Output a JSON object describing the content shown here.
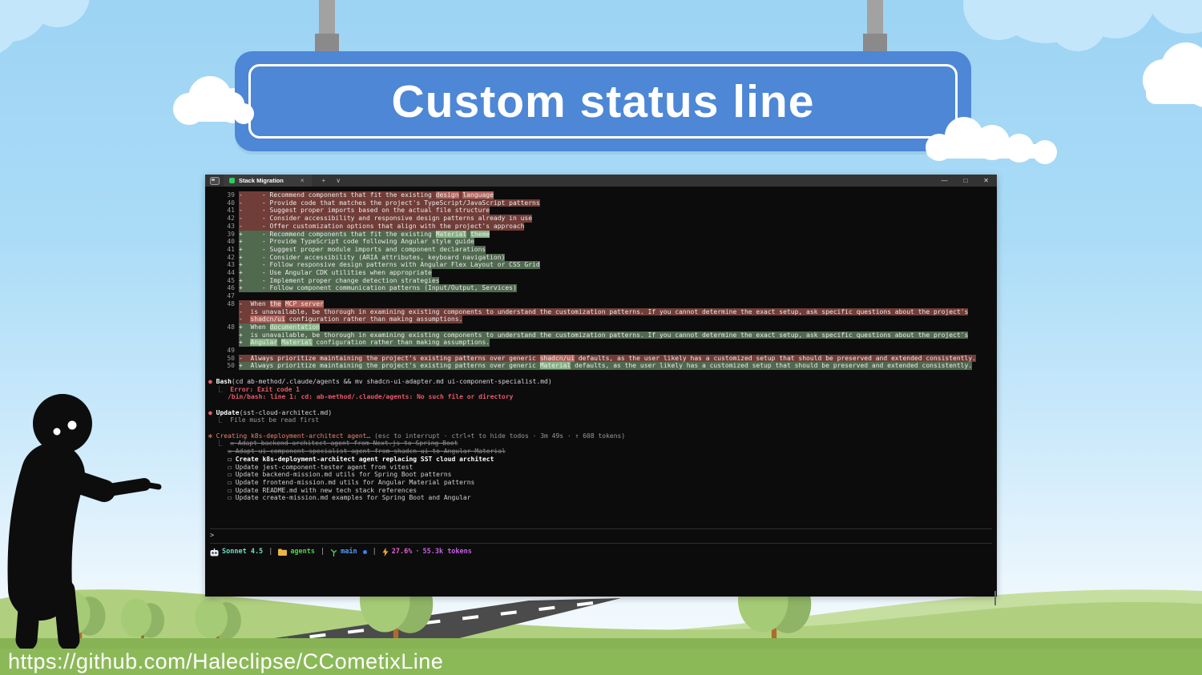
{
  "colors": {
    "sign_blue": "#4d87d6",
    "term_bg": "#0c0c0c",
    "titlebar": "#333333",
    "rem_bg": "#713d38",
    "rem_hl": "#b0625b",
    "add_bg": "#50694f",
    "add_hl": "#85b285",
    "error_red": "#e8596a",
    "salmon": "#e8846e",
    "model_teal": "#6fdfc2",
    "dir_green": "#4ed34e",
    "branch_blue": "#4f9cf9",
    "pct_magenta": "#e263d8",
    "tokens_magenta": "#c55fe3",
    "ground_light": "#b0d07f",
    "ground_dark": "#8cb958",
    "road_gray": "#4b4b4b",
    "cloud_blue": "#c3e6fb"
  },
  "sign": {
    "title": "Custom status line"
  },
  "url": "https://github.com/Haleclipse/CCometixLine",
  "terminal": {
    "tab_title": "Stack Migration",
    "tab_close": "×",
    "new_tab": "+",
    "dropdown": "∨",
    "win_min": "—",
    "win_max": "□",
    "win_close": "✕",
    "diff": {
      "lines": [
        {
          "no": "39",
          "type": "rem",
          "segs": [
            {
              "t": "-     - Recommend components that fit the existing "
            },
            {
              "t": "design",
              "hl": true
            },
            {
              "t": " "
            },
            {
              "t": "language",
              "hl": true
            }
          ]
        },
        {
          "no": "40",
          "type": "rem",
          "segs": [
            {
              "t": "-     - Provide code that matches the project's TypeScript/JavaScript patterns"
            }
          ]
        },
        {
          "no": "41",
          "type": "rem",
          "segs": [
            {
              "t": "-     - Suggest proper imports based on the actual file structure"
            }
          ]
        },
        {
          "no": "42",
          "type": "rem",
          "segs": [
            {
              "t": "-     - Consider accessibility and responsive design patterns already in use"
            }
          ]
        },
        {
          "no": "43",
          "type": "rem",
          "segs": [
            {
              "t": "-     - Offer customization options that align with the project's approach"
            }
          ]
        },
        {
          "no": "39",
          "type": "add",
          "segs": [
            {
              "t": "+     - Recommend components that fit the existing "
            },
            {
              "t": "Material",
              "hl": true
            },
            {
              "t": " "
            },
            {
              "t": "theme",
              "hl": true
            }
          ]
        },
        {
          "no": "40",
          "type": "add",
          "segs": [
            {
              "t": "+     - Provide TypeScript code following Angular style guide"
            }
          ]
        },
        {
          "no": "41",
          "type": "add",
          "segs": [
            {
              "t": "+     - Suggest proper module imports and component declarations"
            }
          ]
        },
        {
          "no": "42",
          "type": "add",
          "segs": [
            {
              "t": "+     - Consider accessibility (ARIA attributes, keyboard navigation)"
            }
          ]
        },
        {
          "no": "43",
          "type": "add",
          "segs": [
            {
              "t": "+     - Follow responsive design patterns with Angular Flex Layout or CSS Grid"
            }
          ]
        },
        {
          "no": "44",
          "type": "add",
          "segs": [
            {
              "t": "+     - Use Angular CDK utilities when appropriate"
            }
          ]
        },
        {
          "no": "45",
          "type": "add",
          "segs": [
            {
              "t": "+     - Implement proper change detection strategies"
            }
          ]
        },
        {
          "no": "46",
          "type": "add",
          "segs": [
            {
              "t": "+     - Follow component communication patterns (Input/Output, Services)"
            }
          ]
        },
        {
          "no": "47",
          "type": "ctx",
          "segs": []
        },
        {
          "no": "48",
          "type": "rem",
          "segs": [
            {
              "t": "-  When "
            },
            {
              "t": "the",
              "hl": true
            },
            {
              "t": " "
            },
            {
              "t": "MCP server",
              "hl": true
            }
          ]
        },
        {
          "no": "",
          "type": "rem",
          "segs": [
            {
              "t": "-  is unavailable, be thorough in examining existing components to understand the customization patterns. If you cannot determine the exact setup, ask specific questions about the project's"
            }
          ]
        },
        {
          "no": "",
          "type": "rem",
          "segs": [
            {
              "t": "-  "
            },
            {
              "t": "shadcn/ui",
              "hl": true
            },
            {
              "t": " configuration rather than making assumptions."
            }
          ]
        },
        {
          "no": "48",
          "type": "add",
          "segs": [
            {
              "t": "+  When "
            },
            {
              "t": "documentation",
              "hl": true
            }
          ]
        },
        {
          "no": "",
          "type": "add",
          "segs": [
            {
              "t": "+  is unavailable, be thorough in examining existing components to understand the customization patterns. If you cannot determine the exact setup, ask specific questions about the project's"
            }
          ]
        },
        {
          "no": "",
          "type": "add",
          "segs": [
            {
              "t": "+  "
            },
            {
              "t": "Angular",
              "hl": true
            },
            {
              "t": " "
            },
            {
              "t": "Material",
              "hl": true
            },
            {
              "t": " configuration rather than making assumptions."
            }
          ]
        },
        {
          "no": "49",
          "type": "ctx",
          "segs": []
        },
        {
          "no": "50",
          "type": "rem",
          "segs": [
            {
              "t": "-  Always prioritize maintaining the project's existing patterns over generic "
            },
            {
              "t": "shadcn/ui",
              "hl": true
            },
            {
              "t": " defaults, as the user likely has a customized setup that should be preserved and extended consistently."
            }
          ]
        },
        {
          "no": "50",
          "type": "add",
          "segs": [
            {
              "t": "+  Always prioritize maintaining the project's existing patterns over generic "
            },
            {
              "t": "Material",
              "hl": true
            },
            {
              "t": " defaults, as the user likely has a customized setup that should be preserved and extended consistently."
            }
          ]
        }
      ]
    },
    "bash": {
      "bullet": "●",
      "name": "Bash",
      "args": "(cd ab-method/.claude/agents && mv shadcn-ui-adapter.md ui-component-specialist.md)",
      "result_prefix": "  ⎿  ",
      "error_line1": "Error: Exit code 1",
      "error_line2": "     /bin/bash: line 1: cd: ab-method/.claude/agents: No such file or directory"
    },
    "update": {
      "bullet": "●",
      "name": "Update",
      "args": "(sst-cloud-architect.md)",
      "result_prefix": "  ⎿  ",
      "result": "File must be read first"
    },
    "creating": {
      "star": "✻ ",
      "title": "Creating k8s-deployment-architect agent…",
      "meta": " (esc to interrupt · ctrl+t to hide todos · 3m 49s · ↑ 608 tokens)",
      "prefix": "⎿",
      "checked_glyph": "☒",
      "unchecked_glyph": "☐",
      "todos": [
        {
          "done": true,
          "text": "Adapt backend-architect agent from Next.js to Spring Boot"
        },
        {
          "done": true,
          "text": "Adapt ui-component-specialist agent from shadcn-ui to Angular Material"
        },
        {
          "done": false,
          "current": true,
          "text": "Create k8s-deployment-architect agent replacing SST cloud architect"
        },
        {
          "done": false,
          "text": "Update jest-component-tester agent from vitest"
        },
        {
          "done": false,
          "text": "Update backend-mission.md utils for Spring Boot patterns"
        },
        {
          "done": false,
          "text": "Update frontend-mission.md utils for Angular Material patterns"
        },
        {
          "done": false,
          "text": "Update README.md with new tech stack references"
        },
        {
          "done": false,
          "text": "Update create-mission.md examples for Spring Boot and Angular"
        }
      ]
    },
    "prompt": ">",
    "status_line": {
      "model": "Sonnet 4.5",
      "sep": "|",
      "directory": "agents",
      "branch": "main",
      "context_pct": "27.6%",
      "mid_dot": "·",
      "tokens": "55.3k tokens"
    }
  }
}
